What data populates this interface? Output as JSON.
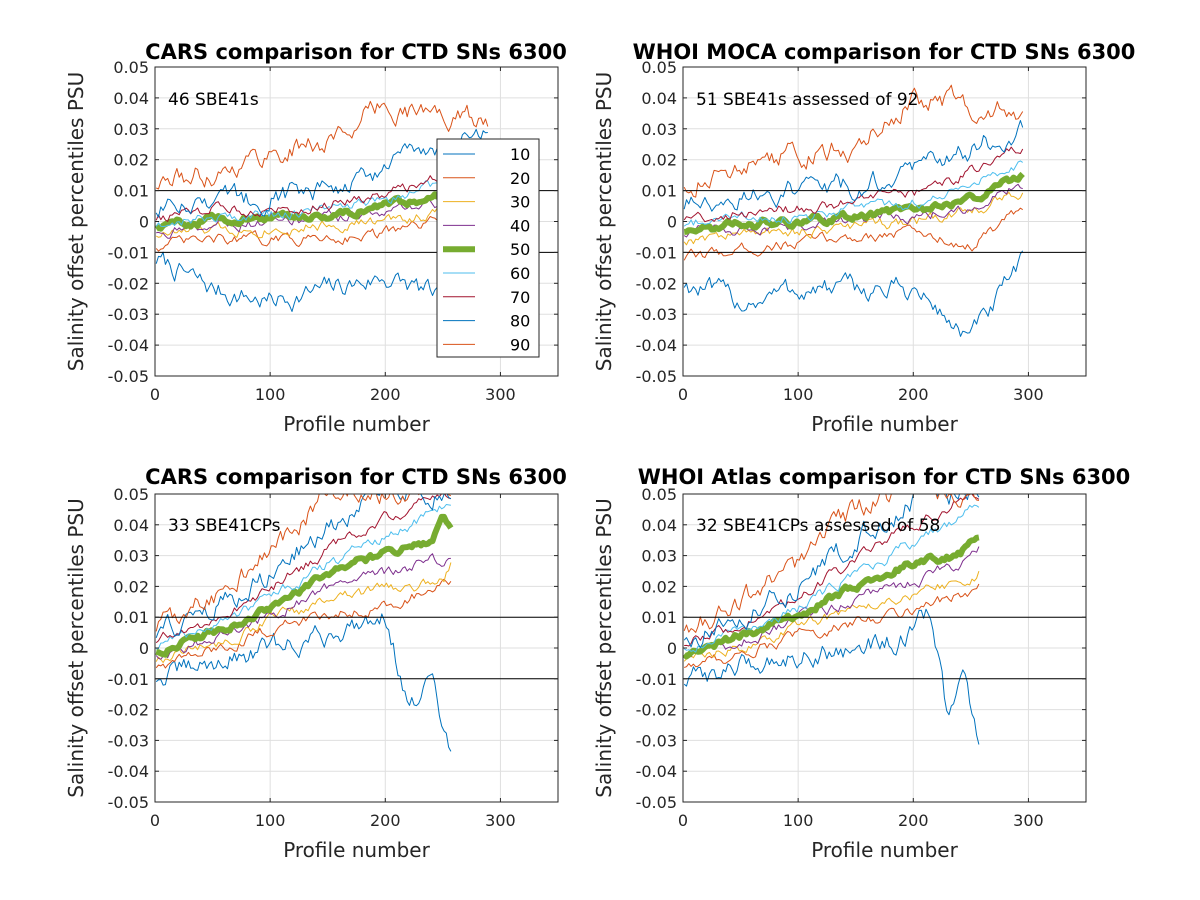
{
  "chart_data": [
    {
      "type": "line",
      "title": "CARS comparison for CTD SNs 6300",
      "annotation": "46 SBE41s",
      "xlabel": "Profile number",
      "ylabel": "Salinity offset percentiles PSU",
      "xlim": [
        0,
        350
      ],
      "ylim": [
        -0.05,
        0.05
      ],
      "xticks": [
        "0",
        "100",
        "200",
        "300"
      ],
      "yticks": [
        "-0.05",
        "-0.04",
        "-0.03",
        "-0.02",
        "-0.01",
        "0",
        "0.01",
        "0.02",
        "0.03",
        "0.04",
        "0.05"
      ],
      "grid": true,
      "reference_lines": [
        0.01,
        -0.01
      ],
      "legend": {
        "position": "right-inside",
        "entries": [
          "10",
          "20",
          "30",
          "40",
          "50",
          "60",
          "70",
          "80",
          "90"
        ]
      },
      "x_max": 290,
      "series": [
        {
          "name": "10",
          "color": "#0072BD",
          "width": 1,
          "x": [
            0,
            50,
            100,
            150,
            200,
            250,
            290
          ],
          "y": [
            -0.012,
            -0.022,
            -0.026,
            -0.022,
            -0.018,
            -0.025,
            -0.015
          ]
        },
        {
          "name": "20",
          "color": "#D95319",
          "width": 1,
          "x": [
            0,
            50,
            100,
            150,
            200,
            250,
            290
          ],
          "y": [
            -0.008,
            -0.006,
            -0.006,
            -0.005,
            -0.004,
            0.0,
            0.002
          ]
        },
        {
          "name": "30",
          "color": "#EDB120",
          "width": 1,
          "x": [
            0,
            50,
            100,
            150,
            200,
            250,
            290
          ],
          "y": [
            -0.004,
            -0.003,
            -0.002,
            -0.001,
            0.0,
            0.003,
            0.006
          ]
        },
        {
          "name": "40",
          "color": "#7E2F8E",
          "width": 1,
          "x": [
            0,
            50,
            100,
            150,
            200,
            250,
            290
          ],
          "y": [
            -0.003,
            -0.001,
            0.0,
            0.001,
            0.003,
            0.006,
            0.008
          ]
        },
        {
          "name": "50",
          "color": "#77AC30",
          "width": 6,
          "x": [
            0,
            50,
            100,
            150,
            200,
            250,
            290
          ],
          "y": [
            -0.002,
            0.001,
            0.001,
            0.002,
            0.005,
            0.009,
            0.011
          ]
        },
        {
          "name": "60",
          "color": "#4DBEEE",
          "width": 1,
          "x": [
            0,
            50,
            100,
            150,
            200,
            250,
            290
          ],
          "y": [
            -0.001,
            0.002,
            0.002,
            0.004,
            0.007,
            0.012,
            0.015
          ]
        },
        {
          "name": "70",
          "color": "#A2142F",
          "width": 1,
          "x": [
            0,
            50,
            100,
            150,
            200,
            250,
            290
          ],
          "y": [
            0.001,
            0.004,
            0.004,
            0.006,
            0.009,
            0.015,
            0.018
          ]
        },
        {
          "name": "80",
          "color": "#0072BD",
          "width": 1,
          "x": [
            0,
            50,
            100,
            150,
            200,
            250,
            290
          ],
          "y": [
            0.004,
            0.007,
            0.008,
            0.011,
            0.016,
            0.025,
            0.027
          ]
        },
        {
          "name": "90",
          "color": "#D95319",
          "width": 1,
          "x": [
            0,
            50,
            100,
            150,
            200,
            250,
            290
          ],
          "y": [
            0.012,
            0.016,
            0.022,
            0.026,
            0.038,
            0.034,
            0.033
          ]
        }
      ]
    },
    {
      "type": "line",
      "title": "WHOI MOCA comparison for CTD SNs 6300",
      "annotation": "51 SBE41s assessed of 92",
      "xlabel": "Profile number",
      "ylabel": "Salinity offset percentiles PSU",
      "xlim": [
        0,
        350
      ],
      "ylim": [
        -0.05,
        0.05
      ],
      "xticks": [
        "0",
        "100",
        "200",
        "300"
      ],
      "yticks": [
        "-0.05",
        "-0.04",
        "-0.03",
        "-0.02",
        "-0.01",
        "0",
        "0.01",
        "0.02",
        "0.03",
        "0.04",
        "0.05"
      ],
      "grid": true,
      "reference_lines": [
        0.01,
        -0.01
      ],
      "x_max": 295,
      "series": [
        {
          "name": "10",
          "color": "#0072BD",
          "width": 1,
          "x": [
            0,
            50,
            100,
            150,
            200,
            250,
            295
          ],
          "y": [
            -0.02,
            -0.026,
            -0.022,
            -0.022,
            -0.022,
            -0.038,
            -0.014
          ]
        },
        {
          "name": "20",
          "color": "#D95319",
          "width": 1,
          "x": [
            0,
            50,
            100,
            150,
            200,
            250,
            295
          ],
          "y": [
            -0.012,
            -0.009,
            -0.007,
            -0.005,
            -0.003,
            -0.008,
            0.004
          ]
        },
        {
          "name": "30",
          "color": "#EDB120",
          "width": 1,
          "x": [
            0,
            50,
            100,
            150,
            200,
            250,
            295
          ],
          "y": [
            -0.006,
            -0.004,
            -0.003,
            -0.002,
            0.0,
            0.003,
            0.01
          ]
        },
        {
          "name": "40",
          "color": "#7E2F8E",
          "width": 1,
          "x": [
            0,
            50,
            100,
            150,
            200,
            250,
            295
          ],
          "y": [
            -0.004,
            -0.002,
            -0.001,
            0.001,
            0.002,
            0.005,
            0.012
          ]
        },
        {
          "name": "50",
          "color": "#77AC30",
          "width": 6,
          "x": [
            0,
            50,
            100,
            150,
            200,
            250,
            295
          ],
          "y": [
            -0.003,
            -0.001,
            0.0,
            0.002,
            0.004,
            0.007,
            0.015
          ]
        },
        {
          "name": "60",
          "color": "#4DBEEE",
          "width": 1,
          "x": [
            0,
            50,
            100,
            150,
            200,
            250,
            295
          ],
          "y": [
            -0.001,
            0.001,
            0.002,
            0.004,
            0.006,
            0.012,
            0.02
          ]
        },
        {
          "name": "70",
          "color": "#A2142F",
          "width": 1,
          "x": [
            0,
            50,
            100,
            150,
            200,
            250,
            295
          ],
          "y": [
            0.001,
            0.003,
            0.004,
            0.006,
            0.009,
            0.016,
            0.024
          ]
        },
        {
          "name": "80",
          "color": "#0072BD",
          "width": 1,
          "x": [
            0,
            50,
            100,
            150,
            200,
            250,
            295
          ],
          "y": [
            0.005,
            0.008,
            0.01,
            0.012,
            0.016,
            0.024,
            0.03
          ]
        },
        {
          "name": "90",
          "color": "#D95319",
          "width": 1,
          "x": [
            0,
            50,
            100,
            150,
            200,
            250,
            295
          ],
          "y": [
            0.012,
            0.018,
            0.022,
            0.024,
            0.04,
            0.038,
            0.035
          ]
        }
      ]
    },
    {
      "type": "line",
      "title": "CARS comparison for CTD SNs 6300",
      "annotation": "33 SBE41CPs",
      "xlabel": "Profile number",
      "ylabel": "Salinity offset percentiles PSU",
      "xlim": [
        0,
        350
      ],
      "ylim": [
        -0.05,
        0.05
      ],
      "xticks": [
        "0",
        "100",
        "200",
        "300"
      ],
      "yticks": [
        "-0.05",
        "-0.04",
        "-0.03",
        "-0.02",
        "-0.01",
        "0",
        "0.01",
        "0.02",
        "0.03",
        "0.04",
        "0.05"
      ],
      "grid": true,
      "reference_lines": [
        0.01,
        -0.01
      ],
      "x_max": 258,
      "series": [
        {
          "name": "10",
          "color": "#0072BD",
          "width": 1,
          "x": [
            0,
            50,
            100,
            150,
            200,
            220,
            240,
            258
          ],
          "y": [
            -0.01,
            -0.005,
            0.0,
            0.004,
            0.012,
            -0.02,
            -0.012,
            -0.038
          ]
        },
        {
          "name": "20",
          "color": "#D95319",
          "width": 1,
          "x": [
            0,
            50,
            100,
            150,
            200,
            250,
            258
          ],
          "y": [
            -0.006,
            -0.001,
            0.006,
            0.011,
            0.014,
            0.02,
            0.02
          ]
        },
        {
          "name": "30",
          "color": "#EDB120",
          "width": 1,
          "x": [
            0,
            50,
            100,
            150,
            200,
            250,
            258
          ],
          "y": [
            -0.004,
            0.001,
            0.009,
            0.015,
            0.019,
            0.022,
            0.027
          ]
        },
        {
          "name": "40",
          "color": "#7E2F8E",
          "width": 1,
          "x": [
            0,
            50,
            100,
            150,
            200,
            250,
            258
          ],
          "y": [
            -0.002,
            0.003,
            0.011,
            0.019,
            0.024,
            0.029,
            0.032
          ]
        },
        {
          "name": "50",
          "color": "#77AC30",
          "width": 6,
          "x": [
            0,
            50,
            100,
            150,
            200,
            240,
            250,
            258
          ],
          "y": [
            -0.001,
            0.005,
            0.013,
            0.024,
            0.031,
            0.034,
            0.043,
            0.04
          ]
        },
        {
          "name": "60",
          "color": "#4DBEEE",
          "width": 1,
          "x": [
            0,
            50,
            100,
            150,
            200,
            250,
            258
          ],
          "y": [
            0.0,
            0.007,
            0.016,
            0.027,
            0.036,
            0.046,
            0.048
          ]
        },
        {
          "name": "70",
          "color": "#A2142F",
          "width": 1,
          "x": [
            0,
            50,
            100,
            150,
            200,
            250,
            258
          ],
          "y": [
            0.002,
            0.009,
            0.019,
            0.032,
            0.042,
            0.05,
            0.05
          ]
        },
        {
          "name": "80",
          "color": "#0072BD",
          "width": 1,
          "x": [
            0,
            50,
            100,
            150,
            200,
            250,
            258
          ],
          "y": [
            0.004,
            0.012,
            0.024,
            0.04,
            0.05,
            0.05,
            0.05
          ]
        },
        {
          "name": "90",
          "color": "#D95319",
          "width": 1,
          "x": [
            0,
            50,
            100,
            150,
            200,
            250,
            258
          ],
          "y": [
            0.006,
            0.017,
            0.032,
            0.05,
            0.05,
            0.05,
            0.05
          ]
        }
      ]
    },
    {
      "type": "line",
      "title": "WHOI Atlas comparison for CTD SNs 6300",
      "annotation": "32 SBE41CPs assessed of 58",
      "xlabel": "Profile number",
      "ylabel": "Salinity offset percentiles PSU",
      "xlim": [
        0,
        350
      ],
      "ylim": [
        -0.05,
        0.05
      ],
      "xticks": [
        "0",
        "100",
        "200",
        "300"
      ],
      "yticks": [
        "-0.05",
        "-0.04",
        "-0.03",
        "-0.02",
        "-0.01",
        "0",
        "0.01",
        "0.02",
        "0.03",
        "0.04",
        "0.05"
      ],
      "grid": true,
      "reference_lines": [
        0.01,
        -0.01
      ],
      "x_max": 258,
      "series": [
        {
          "name": "10",
          "color": "#0072BD",
          "width": 1,
          "x": [
            0,
            50,
            100,
            150,
            200,
            215,
            230,
            245,
            258
          ],
          "y": [
            -0.011,
            -0.006,
            -0.002,
            0.0,
            0.004,
            0.012,
            -0.023,
            -0.009,
            -0.036
          ]
        },
        {
          "name": "20",
          "color": "#D95319",
          "width": 1,
          "x": [
            0,
            50,
            100,
            150,
            200,
            250,
            258
          ],
          "y": [
            -0.006,
            -0.002,
            0.004,
            0.008,
            0.013,
            0.018,
            0.02
          ]
        },
        {
          "name": "30",
          "color": "#EDB120",
          "width": 1,
          "x": [
            0,
            50,
            100,
            150,
            200,
            250,
            258
          ],
          "y": [
            -0.004,
            0.0,
            0.007,
            0.013,
            0.018,
            0.022,
            0.025
          ]
        },
        {
          "name": "40",
          "color": "#7E2F8E",
          "width": 1,
          "x": [
            0,
            50,
            100,
            150,
            200,
            250,
            258
          ],
          "y": [
            -0.003,
            0.002,
            0.009,
            0.016,
            0.022,
            0.028,
            0.031
          ]
        },
        {
          "name": "50",
          "color": "#77AC30",
          "width": 6,
          "x": [
            0,
            50,
            100,
            150,
            200,
            240,
            250,
            258
          ],
          "y": [
            -0.002,
            0.004,
            0.011,
            0.02,
            0.028,
            0.03,
            0.036,
            0.038
          ]
        },
        {
          "name": "60",
          "color": "#4DBEEE",
          "width": 1,
          "x": [
            0,
            50,
            100,
            150,
            200,
            250,
            258
          ],
          "y": [
            0.0,
            0.006,
            0.013,
            0.024,
            0.034,
            0.045,
            0.047
          ]
        },
        {
          "name": "70",
          "color": "#A2142F",
          "width": 1,
          "x": [
            0,
            50,
            100,
            150,
            200,
            250,
            258
          ],
          "y": [
            0.001,
            0.008,
            0.016,
            0.029,
            0.04,
            0.05,
            0.05
          ]
        },
        {
          "name": "80",
          "color": "#0072BD",
          "width": 1,
          "x": [
            0,
            50,
            100,
            150,
            200,
            250,
            258
          ],
          "y": [
            0.003,
            0.011,
            0.02,
            0.035,
            0.048,
            0.05,
            0.05
          ]
        },
        {
          "name": "90",
          "color": "#D95319",
          "width": 1,
          "x": [
            0,
            50,
            100,
            150,
            200,
            250,
            258
          ],
          "y": [
            0.006,
            0.015,
            0.027,
            0.045,
            0.05,
            0.05,
            0.05
          ]
        }
      ]
    }
  ]
}
